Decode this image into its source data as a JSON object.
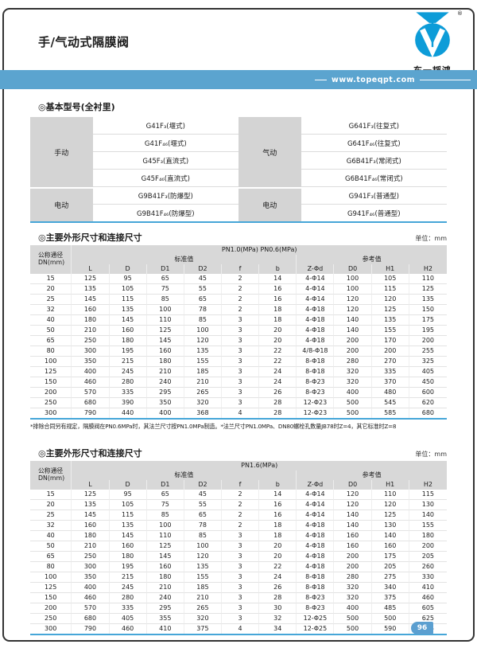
{
  "header": {
    "title": "手/气动式隔膜阀",
    "logo_text": "东一韬鸿",
    "registered_mark": "®",
    "website": "www.topeqpt.com"
  },
  "basic_models": {
    "title": "◎基本型号(全衬里)",
    "left_group_label": "手动",
    "left_group2_label": "电动",
    "right_group_label": "气动",
    "right_group2_label": "电动",
    "left_models": [
      "G41F₃(堰式)",
      "G41F₄₆(堰式)",
      "G45F₃(直流式)",
      "G45F₄₆(直流式)",
      "G9B41F₃(防爆型)",
      "G9B41F₄₆(防爆型)"
    ],
    "right_models": [
      "G641F₃(往复式)",
      "G641F₄₆(往复式)",
      "G6B41F₃(常闭式)",
      "G6B41F₄₆(常闭式)",
      "G941F₃(普通型)",
      "G941F₄₆(普通型)"
    ]
  },
  "dims_pn10": {
    "title": "◎主要外形尺寸和连接尺寸",
    "unit": "单位：mm",
    "pressure": "PN1.0(MPa) PN0.6(MPa)",
    "dn_label": "公称通径",
    "dn_sublabel": "DN(mm)",
    "group_standard": "标准值",
    "group_reference": "参考值",
    "columns": [
      "L",
      "D",
      "D1",
      "D2",
      "f",
      "b",
      "Z-Φd",
      "D0",
      "H1",
      "H2"
    ],
    "rows": [
      [
        15,
        125,
        95,
        65,
        45,
        2,
        14,
        "4-Φ14",
        100,
        105,
        110
      ],
      [
        20,
        135,
        105,
        75,
        55,
        2,
        16,
        "4-Φ14",
        100,
        115,
        125
      ],
      [
        25,
        145,
        115,
        85,
        65,
        2,
        16,
        "4-Φ14",
        120,
        120,
        135
      ],
      [
        32,
        160,
        135,
        100,
        78,
        2,
        18,
        "4-Φ18",
        120,
        125,
        150
      ],
      [
        40,
        180,
        145,
        110,
        85,
        3,
        18,
        "4-Φ18",
        140,
        135,
        175
      ],
      [
        50,
        210,
        160,
        125,
        100,
        3,
        20,
        "4-Φ18",
        140,
        155,
        195
      ],
      [
        65,
        250,
        180,
        145,
        120,
        3,
        20,
        "4-Φ18",
        200,
        170,
        200
      ],
      [
        80,
        300,
        195,
        160,
        135,
        3,
        22,
        "4/8-Φ18",
        200,
        200,
        255
      ],
      [
        100,
        350,
        215,
        180,
        155,
        3,
        22,
        "8-Φ18",
        280,
        270,
        325
      ],
      [
        125,
        400,
        245,
        210,
        185,
        3,
        24,
        "8-Φ18",
        320,
        335,
        405
      ],
      [
        150,
        460,
        280,
        240,
        210,
        3,
        24,
        "8-Φ23",
        320,
        370,
        450
      ],
      [
        200,
        570,
        335,
        295,
        265,
        3,
        26,
        "8-Φ23",
        400,
        480,
        600
      ],
      [
        250,
        680,
        390,
        350,
        320,
        3,
        28,
        "12-Φ23",
        500,
        545,
        620
      ],
      [
        300,
        790,
        440,
        400,
        368,
        4,
        28,
        "12-Φ23",
        500,
        585,
        680
      ]
    ],
    "footnote": "*排除合同另有规定，隔膜阀在PN0.6MPa时，其法兰尺寸按PN1.0MPa制造。*法兰尺寸PN1.0MPa、DN80螺栓孔数量JB78时Z=4，其它标准时Z=8"
  },
  "dims_pn16": {
    "title": "◎主要外形尺寸和连接尺寸",
    "unit": "单位：mm",
    "pressure": "PN1.6(MPa)",
    "dn_label": "公称通径",
    "dn_sublabel": "DN(mm)",
    "group_standard": "标准值",
    "group_reference": "参考值",
    "columns": [
      "L",
      "D",
      "D1",
      "D2",
      "f",
      "b",
      "Z-Φd",
      "D0",
      "H1",
      "H2"
    ],
    "rows": [
      [
        15,
        125,
        95,
        65,
        45,
        2,
        14,
        "4-Φ14",
        120,
        110,
        115
      ],
      [
        20,
        135,
        105,
        75,
        55,
        2,
        16,
        "4-Φ14",
        120,
        120,
        130
      ],
      [
        25,
        145,
        115,
        85,
        65,
        2,
        16,
        "4-Φ14",
        140,
        125,
        140
      ],
      [
        32,
        160,
        135,
        100,
        78,
        2,
        18,
        "4-Φ18",
        140,
        130,
        155
      ],
      [
        40,
        180,
        145,
        110,
        85,
        3,
        18,
        "4-Φ18",
        160,
        140,
        180
      ],
      [
        50,
        210,
        160,
        125,
        100,
        3,
        20,
        "4-Φ18",
        160,
        160,
        200
      ],
      [
        65,
        250,
        180,
        145,
        120,
        3,
        20,
        "4-Φ18",
        200,
        175,
        205
      ],
      [
        80,
        300,
        195,
        160,
        135,
        3,
        22,
        "4-Φ18",
        200,
        205,
        260
      ],
      [
        100,
        350,
        215,
        180,
        155,
        3,
        24,
        "8-Φ18",
        280,
        275,
        330
      ],
      [
        125,
        400,
        245,
        210,
        185,
        3,
        26,
        "8-Φ18",
        320,
        340,
        410
      ],
      [
        150,
        460,
        280,
        240,
        210,
        3,
        28,
        "8-Φ23",
        320,
        375,
        460
      ],
      [
        200,
        570,
        335,
        295,
        265,
        3,
        30,
        "8-Φ23",
        400,
        485,
        605
      ],
      [
        250,
        680,
        405,
        355,
        320,
        3,
        32,
        "12-Φ25",
        500,
        500,
        625
      ],
      [
        300,
        790,
        460,
        410,
        375,
        4,
        34,
        "12-Φ25",
        500,
        590,
        685
      ]
    ]
  },
  "footer": {
    "page_number": "96"
  },
  "colors": {
    "banner_blue": "#5ba4cf",
    "logo_blue": "#0d9cd8",
    "table_rule_blue": "#46a6d8",
    "cell_gray": "#d4d4d4",
    "badge_blue": "#5b9fd0"
  }
}
